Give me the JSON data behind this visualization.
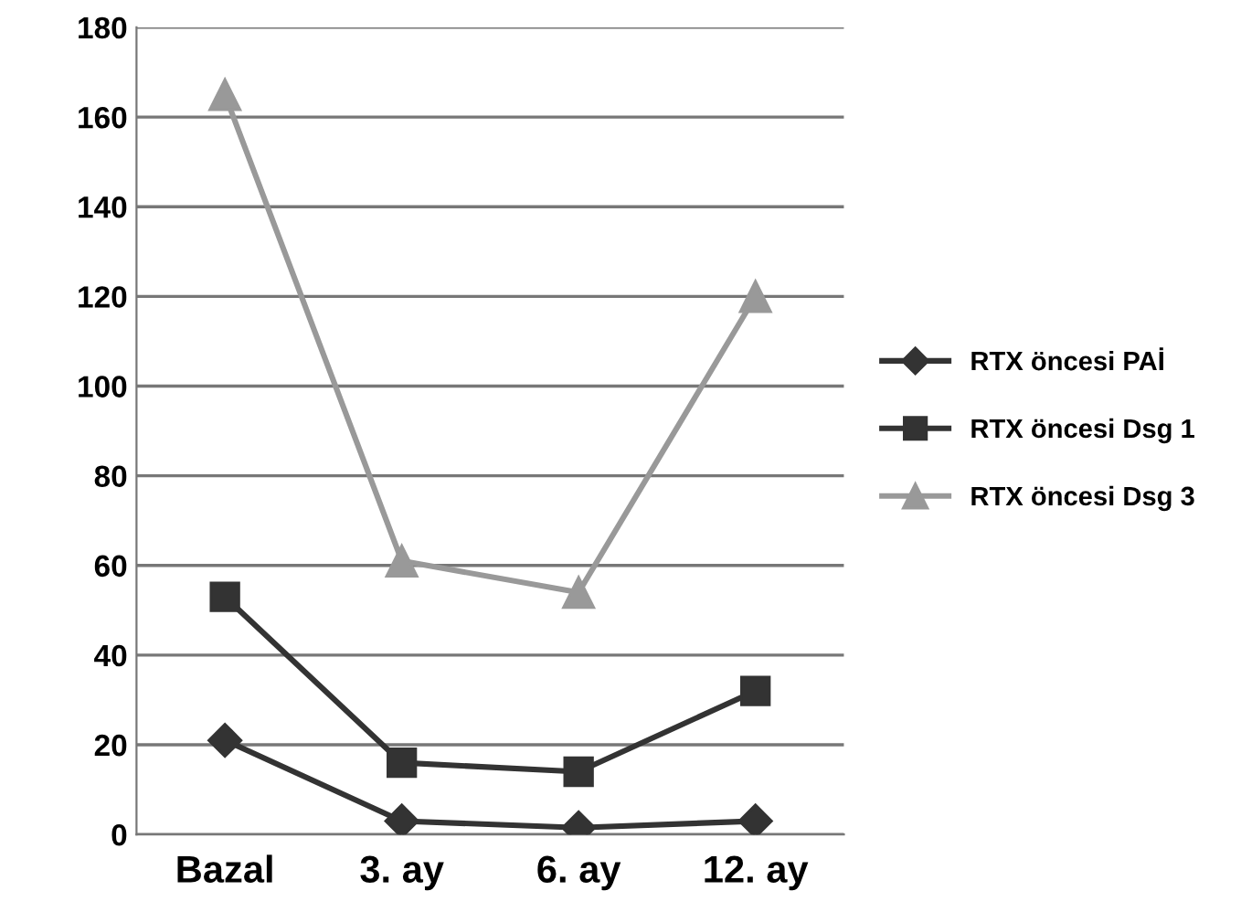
{
  "chart_data": {
    "type": "line",
    "categories": [
      "Bazal",
      "3. ay",
      "6. ay",
      "12. ay"
    ],
    "series": [
      {
        "name": "RTX öncesi PAİ",
        "color": "#333333",
        "marker": "diamond",
        "values": [
          21,
          3,
          1.5,
          3
        ]
      },
      {
        "name": "RTX öncesi Dsg 1",
        "color": "#333333",
        "marker": "square",
        "values": [
          53,
          16,
          14,
          32
        ]
      },
      {
        "name": "RTX öncesi Dsg 3",
        "color": "#999999",
        "marker": "triangle",
        "values": [
          165,
          61,
          54,
          120
        ]
      }
    ],
    "ylim": [
      0,
      180
    ],
    "yticks": [
      0,
      20,
      40,
      60,
      80,
      100,
      120,
      140,
      160,
      180
    ],
    "grid": "y",
    "legend": "right",
    "line_style": "solid"
  }
}
